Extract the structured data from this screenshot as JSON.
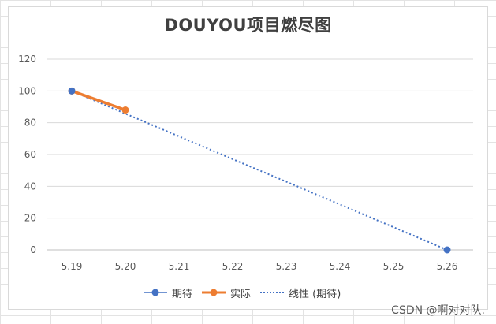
{
  "chart_data": {
    "type": "line",
    "title": "DOUYOU项目燃尽图",
    "categories": [
      "5.19",
      "5.20",
      "5.21",
      "5.22",
      "5.23",
      "5.24",
      "5.25",
      "5.26"
    ],
    "ylim": [
      0,
      120
    ],
    "yticks": [
      0,
      20,
      40,
      60,
      80,
      100,
      120
    ],
    "grid": true,
    "legend_position": "bottom",
    "series": [
      {
        "name": "期待",
        "values": [
          100,
          null,
          null,
          null,
          null,
          null,
          null,
          0
        ],
        "color": "#4472C4",
        "style": "markers"
      },
      {
        "name": "实际",
        "values": [
          100,
          88,
          null,
          null,
          null,
          null,
          null,
          null
        ],
        "color": "#ED7D31",
        "style": "line-markers"
      },
      {
        "name": "线性 (期待)",
        "values": [
          100,
          85.7,
          71.4,
          57.1,
          42.9,
          28.6,
          14.3,
          0
        ],
        "color": "#4472C4",
        "style": "dotted-trendline"
      }
    ]
  },
  "watermark": "CSDN @啊对对队."
}
